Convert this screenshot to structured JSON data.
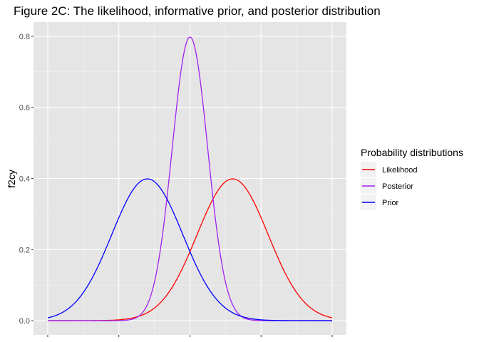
{
  "chart_data": {
    "type": "line",
    "title": "Figure 2C: The likelihood, informative prior, and posterior distribution",
    "xlabel": "",
    "ylabel": "f2cy",
    "x_ticks_labeled": false,
    "xlim": [
      -4,
      4
    ],
    "ylim": [
      0,
      0.8
    ],
    "y_ticks": [
      {
        "value": 0.0,
        "label": "0.0"
      },
      {
        "value": 0.2,
        "label": "0.2"
      },
      {
        "value": 0.4,
        "label": "0.4"
      },
      {
        "value": 0.6,
        "label": "0.6"
      },
      {
        "value": 0.8,
        "label": "0.8"
      }
    ],
    "grid": true,
    "legend": {
      "title": "Probability distributions",
      "placement": "right",
      "entries": [
        "Likelihood",
        "Posterior",
        "Prior"
      ]
    },
    "series": [
      {
        "name": "Likelihood",
        "color": "#ff0000",
        "distribution": "normal",
        "mean": 1.2,
        "sd": 1.0,
        "peak": 0.399
      },
      {
        "name": "Posterior",
        "color": "#a020f0",
        "distribution": "normal",
        "mean": 0.0,
        "sd": 0.5,
        "peak": 0.798
      },
      {
        "name": "Prior",
        "color": "#0000ff",
        "distribution": "normal",
        "mean": -1.2,
        "sd": 1.0,
        "peak": 0.399
      }
    ]
  }
}
